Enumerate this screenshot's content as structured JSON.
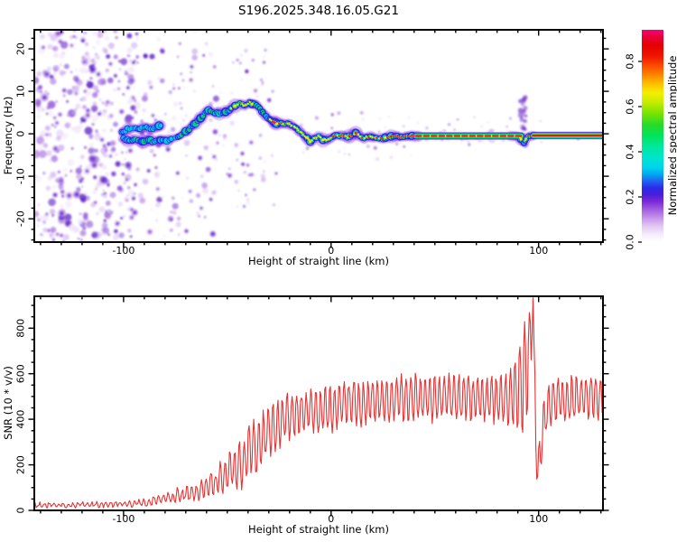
{
  "title": "S196.2025.348.16.05.G21",
  "chart_data": [
    {
      "type": "heatmap",
      "title": "S196.2025.348.16.05.G21",
      "xlabel": "Height of straight line (km)",
      "ylabel": "Frequency (Hz)",
      "xlim": [
        -143,
        131
      ],
      "ylim": [
        -25.5,
        24.5
      ],
      "xticks_major": [
        -100,
        0,
        100
      ],
      "xtick_minor_step": 10,
      "yticks_major": [
        -20,
        -10,
        0,
        10,
        20
      ],
      "ytick_minor_step": 2.5,
      "grid": false,
      "legend": "none",
      "colorbar": {
        "label": "Normalized spectral amplitude",
        "ticks": [
          0.0,
          0.2,
          0.4,
          0.6,
          0.8
        ],
        "range": [
          0,
          0.94
        ],
        "stops": [
          [
            0,
            "#ffffff"
          ],
          [
            0.03,
            "#f7effc"
          ],
          [
            0.07,
            "#e3c8f4"
          ],
          [
            0.11,
            "#c290ea"
          ],
          [
            0.15,
            "#9c55de"
          ],
          [
            0.18,
            "#7a2ad8"
          ],
          [
            0.21,
            "#4a1ed8"
          ],
          [
            0.24,
            "#2b2be8"
          ],
          [
            0.27,
            "#2262f2"
          ],
          [
            0.3,
            "#00a8f0"
          ],
          [
            0.33,
            "#00d2ee"
          ],
          [
            0.37,
            "#00e4d0"
          ],
          [
            0.42,
            "#00e8a0"
          ],
          [
            0.47,
            "#00e45c"
          ],
          [
            0.52,
            "#28da28"
          ],
          [
            0.57,
            "#78e400"
          ],
          [
            0.62,
            "#c8ec00"
          ],
          [
            0.66,
            "#f4ee00"
          ],
          [
            0.7,
            "#ffc000"
          ],
          [
            0.74,
            "#ff8400"
          ],
          [
            0.78,
            "#fc4c00"
          ],
          [
            0.82,
            "#f01800"
          ],
          [
            0.87,
            "#e60000"
          ],
          [
            0.91,
            "#e8003c"
          ],
          [
            0.94,
            "#f70078"
          ]
        ]
      },
      "ridge_colors": {
        "halo": "#8a30dd",
        "blue": "#2b1fe0",
        "cyan": "#00c8ea",
        "green": "#00d84a",
        "yellow": "#f0e800",
        "red": "#ee1500"
      },
      "noise_palette": [
        "#f0e4fb",
        "#e2ccf6",
        "#d2b2f0",
        "#c096ea",
        "#ab7ae2",
        "#9560da",
        "#7f45d2",
        "#6a2cc9",
        "#5a1ec2"
      ],
      "ridge_strands": [
        [
          [
            -101,
            0.2,
            0.5
          ],
          [
            -98,
            1.1,
            0.5
          ],
          [
            -95,
            1.4,
            0.48
          ],
          [
            -92,
            1.2,
            0.52
          ],
          [
            -89,
            1.5,
            0.5
          ],
          [
            -86,
            1.3,
            0.48
          ],
          [
            -83,
            1.7,
            0.45
          ],
          [
            -81,
            1.9,
            0.42
          ]
        ],
        [
          [
            -100,
            -1.0,
            0.5
          ],
          [
            -97,
            -1.8,
            0.55
          ],
          [
            -94,
            -1.3,
            0.58
          ],
          [
            -91,
            -1.9,
            0.55
          ],
          [
            -88,
            -1.4,
            0.6
          ],
          [
            -85,
            -1.9,
            0.55
          ],
          [
            -82,
            -1.3,
            0.55
          ],
          [
            -79,
            -1.6,
            0.5
          ],
          [
            -76,
            -1.1,
            0.52
          ]
        ]
      ],
      "ridge_main": [
        [
          -75,
          -0.9,
          0.58
        ],
        [
          -72,
          -0.2,
          0.6
        ],
        [
          -69,
          0.8,
          0.6
        ],
        [
          -66,
          2.2,
          0.62
        ],
        [
          -63,
          3.6,
          0.6
        ],
        [
          -60,
          5.2,
          0.62
        ],
        [
          -58,
          5.6,
          0.6
        ],
        [
          -56,
          5.0,
          0.58
        ],
        [
          -53,
          4.8,
          0.62
        ],
        [
          -50,
          5.4,
          0.66
        ],
        [
          -47,
          6.3,
          0.7
        ],
        [
          -44,
          7.1,
          0.82
        ],
        [
          -42,
          6.9,
          0.7
        ],
        [
          -39,
          7.3,
          0.76
        ],
        [
          -37,
          7.0,
          0.66
        ],
        [
          -35,
          6.2,
          0.62
        ],
        [
          -33,
          5.0,
          0.6
        ],
        [
          -31,
          3.9,
          0.62
        ],
        [
          -29,
          3.0,
          0.8
        ],
        [
          -27,
          2.6,
          0.86
        ],
        [
          -24,
          2.4,
          0.86
        ],
        [
          -21,
          2.3,
          0.84
        ],
        [
          -18,
          1.8,
          0.72
        ],
        [
          -15,
          0.6,
          0.7
        ],
        [
          -12,
          -0.8,
          0.74
        ],
        [
          -10,
          -1.7,
          0.72
        ],
        [
          -8,
          -1.1,
          0.7
        ],
        [
          -6,
          -0.5,
          0.74
        ],
        [
          -4,
          -1.3,
          0.8
        ],
        [
          -2,
          -1.6,
          0.8
        ],
        [
          0,
          -1.0,
          0.84
        ],
        [
          2,
          -0.5,
          0.88
        ],
        [
          5,
          -0.4,
          0.9
        ],
        [
          8,
          -0.8,
          0.88
        ],
        [
          10,
          -0.4,
          0.86
        ],
        [
          12,
          0.1,
          0.82
        ],
        [
          14,
          -0.5,
          0.86
        ],
        [
          16,
          -1.0,
          0.88
        ],
        [
          19,
          -0.5,
          0.9
        ],
        [
          22,
          -0.9,
          0.88
        ],
        [
          25,
          -1.1,
          0.86
        ],
        [
          28,
          -0.7,
          0.9
        ],
        [
          31,
          -0.5,
          0.9
        ],
        [
          34,
          -0.7,
          0.9
        ],
        [
          37,
          -0.5,
          0.92
        ],
        [
          40,
          -0.55,
          0.93
        ],
        [
          50,
          -0.5,
          0.95
        ],
        [
          60,
          -0.5,
          0.95
        ],
        [
          70,
          -0.45,
          0.95
        ],
        [
          80,
          -0.5,
          0.95
        ],
        [
          88,
          -0.5,
          0.94
        ],
        [
          90,
          -0.6,
          0.9
        ],
        [
          91,
          -0.9,
          0.8
        ],
        [
          92,
          -1.6,
          0.66
        ],
        [
          93,
          -2.1,
          0.6
        ],
        [
          94,
          -1.1,
          0.78
        ],
        [
          95,
          -0.6,
          0.86
        ],
        [
          97,
          -0.45,
          0.92
        ],
        [
          100,
          -0.4,
          0.95
        ],
        [
          110,
          -0.4,
          0.97
        ],
        [
          120,
          -0.4,
          0.97
        ],
        [
          131,
          -0.4,
          0.97
        ]
      ],
      "straight_segments": [
        {
          "from": 41,
          "to": 91.5,
          "hz": -0.5,
          "red_dash": true
        },
        {
          "from": 97.5,
          "to": 131,
          "hz": -0.4,
          "red_dash": false
        }
      ],
      "plume": {
        "km": 92.5,
        "km_jitter": 1.3,
        "hz_range": [
          -3.5,
          8.6
        ],
        "count": 26
      },
      "line_fuzz": {
        "km": [
          42,
          92
        ],
        "count": 30
      },
      "noise_regions": [
        {
          "km": [
            -143,
            -110
          ],
          "hz": [
            -25.5,
            24.5
          ],
          "count": 300,
          "r": [
            1.2,
            4.5
          ]
        },
        {
          "km": [
            -110,
            -93
          ],
          "hz": [
            -25.5,
            24.5
          ],
          "count": 155,
          "r": [
            1.2,
            4.2
          ]
        },
        {
          "km": [
            -93,
            -55
          ],
          "hz": [
            -25.5,
            24.5
          ],
          "count": 115,
          "r": [
            1.0,
            3.6
          ]
        },
        {
          "km": [
            -55,
            -25
          ],
          "hz": [
            -18,
            14
          ],
          "count": 55,
          "r": [
            0.8,
            3.0
          ]
        },
        {
          "km": [
            -60,
            -30
          ],
          "hz": [
            8,
            20
          ],
          "count": 14,
          "r": [
            0.8,
            2.4
          ]
        },
        {
          "km": [
            -25,
            40
          ],
          "hz": [
            -6,
            5
          ],
          "count": 40,
          "r": [
            0.7,
            2.2
          ]
        },
        {
          "km": [
            40,
            92
          ],
          "hz": [
            -4,
            4
          ],
          "count": 26,
          "r": [
            0.6,
            1.8
          ]
        },
        {
          "km": [
            98,
            131
          ],
          "hz": [
            -3,
            3
          ],
          "count": 4,
          "r": [
            0.6,
            1.4
          ]
        }
      ],
      "seed": 20251216
    },
    {
      "type": "line",
      "xlabel": "Height of straight line (km)",
      "ylabel": "SNR (10 * v/v)",
      "xlim": [
        -143,
        131
      ],
      "ylim": [
        0,
        940
      ],
      "xticks_major": [
        -100,
        0,
        100
      ],
      "xtick_minor_step": 10,
      "yticks_major": [
        0,
        200,
        400,
        600,
        800
      ],
      "ytick_minor_step": 50,
      "grid": false,
      "color": "#e63232",
      "osc_period_km": 2.3,
      "sample_step_km": 0.45,
      "seed": 77,
      "envelope": [
        [
          -143,
          24,
          7
        ],
        [
          -130,
          24,
          7
        ],
        [
          -120,
          25,
          8
        ],
        [
          -110,
          26,
          8
        ],
        [
          -100,
          28,
          9
        ],
        [
          -95,
          30,
          10
        ],
        [
          -90,
          33,
          12
        ],
        [
          -86,
          40,
          15
        ],
        [
          -83,
          52,
          18
        ],
        [
          -80,
          48,
          16
        ],
        [
          -78,
          62,
          22
        ],
        [
          -76,
          55,
          20
        ],
        [
          -74,
          70,
          26
        ],
        [
          -72,
          62,
          24
        ],
        [
          -70,
          80,
          30
        ],
        [
          -68,
          70,
          28
        ],
        [
          -66,
          88,
          34
        ],
        [
          -64,
          78,
          30
        ],
        [
          -62,
          100,
          40
        ],
        [
          -60,
          92,
          42
        ],
        [
          -58,
          120,
          50
        ],
        [
          -56,
          108,
          48
        ],
        [
          -54,
          150,
          60
        ],
        [
          -52,
          135,
          58
        ],
        [
          -50,
          170,
          70
        ],
        [
          -48,
          190,
          80
        ],
        [
          -46,
          165,
          85
        ],
        [
          -44,
          215,
          95
        ],
        [
          -42,
          195,
          100
        ],
        [
          -40,
          255,
          110
        ],
        [
          -38,
          285,
          105
        ],
        [
          -36,
          265,
          110
        ],
        [
          -34,
          310,
          105
        ],
        [
          -32,
          330,
          100
        ],
        [
          -30,
          345,
          100
        ],
        [
          -28,
          360,
          98
        ],
        [
          -26,
          375,
          95
        ],
        [
          -24,
          390,
          92
        ],
        [
          -22,
          400,
          90
        ],
        [
          -20,
          408,
          90
        ],
        [
          -17,
          418,
          90
        ],
        [
          -14,
          428,
          90
        ],
        [
          -11,
          433,
          90
        ],
        [
          -8,
          438,
          90
        ],
        [
          -5,
          443,
          90
        ],
        [
          -2,
          448,
          90
        ],
        [
          1,
          452,
          90
        ],
        [
          4,
          458,
          90
        ],
        [
          8,
          465,
          90
        ],
        [
          12,
          472,
          90
        ],
        [
          16,
          477,
          90
        ],
        [
          20,
          481,
          90
        ],
        [
          25,
          486,
          90
        ],
        [
          30,
          490,
          90
        ],
        [
          35,
          492,
          90
        ],
        [
          40,
          494,
          90
        ],
        [
          45,
          496,
          90
        ],
        [
          50,
          498,
          90
        ],
        [
          55,
          498,
          90
        ],
        [
          60,
          496,
          90
        ],
        [
          65,
          494,
          90
        ],
        [
          70,
          492,
          90
        ],
        [
          75,
          492,
          92
        ],
        [
          80,
          490,
          96
        ],
        [
          84,
          492,
          105
        ],
        [
          87,
          496,
          120
        ],
        [
          89,
          510,
          150
        ],
        [
          91,
          540,
          190
        ],
        [
          93,
          580,
          230
        ],
        [
          95,
          640,
          200
        ],
        [
          96.5,
          780,
          120
        ],
        [
          97.3,
          930,
          0
        ],
        [
          98,
          500,
          200
        ],
        [
          98.8,
          300,
          120
        ],
        [
          99.5,
          180,
          60
        ],
        [
          100.5,
          240,
          90
        ],
        [
          102,
          380,
          110
        ],
        [
          104,
          450,
          100
        ],
        [
          107,
          480,
          95
        ],
        [
          110,
          488,
          92
        ],
        [
          115,
          492,
          90
        ],
        [
          120,
          496,
          90
        ],
        [
          125,
          494,
          90
        ],
        [
          131,
          490,
          90
        ]
      ]
    }
  ]
}
